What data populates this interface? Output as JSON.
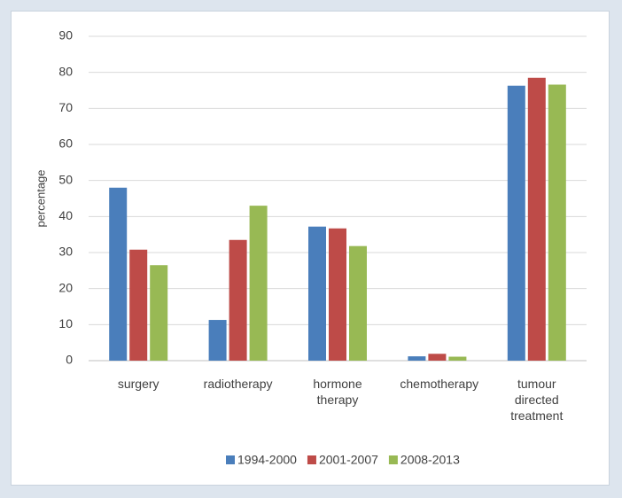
{
  "chart_data": {
    "type": "bar",
    "y_label": "percentage",
    "categories": [
      "surgery",
      "radiotherapy",
      "hormone therapy",
      "chemotherapy",
      "tumour directed treatment"
    ],
    "series": [
      {
        "name": "1994-2000",
        "color": "#4a7ebb",
        "values": [
          48,
          11.3,
          37.2,
          1.2,
          76.3
        ]
      },
      {
        "name": "2001-2007",
        "color": "#be4b48",
        "values": [
          30.8,
          33.5,
          36.7,
          1.9,
          78.5
        ]
      },
      {
        "name": "2008-2013",
        "color": "#98b954",
        "values": [
          26.5,
          43,
          31.8,
          1.1,
          76.6
        ]
      }
    ],
    "ylim": [
      0,
      90
    ],
    "yticks": [
      0,
      10,
      20,
      30,
      40,
      50,
      60,
      70,
      80,
      90
    ],
    "grid": true
  }
}
